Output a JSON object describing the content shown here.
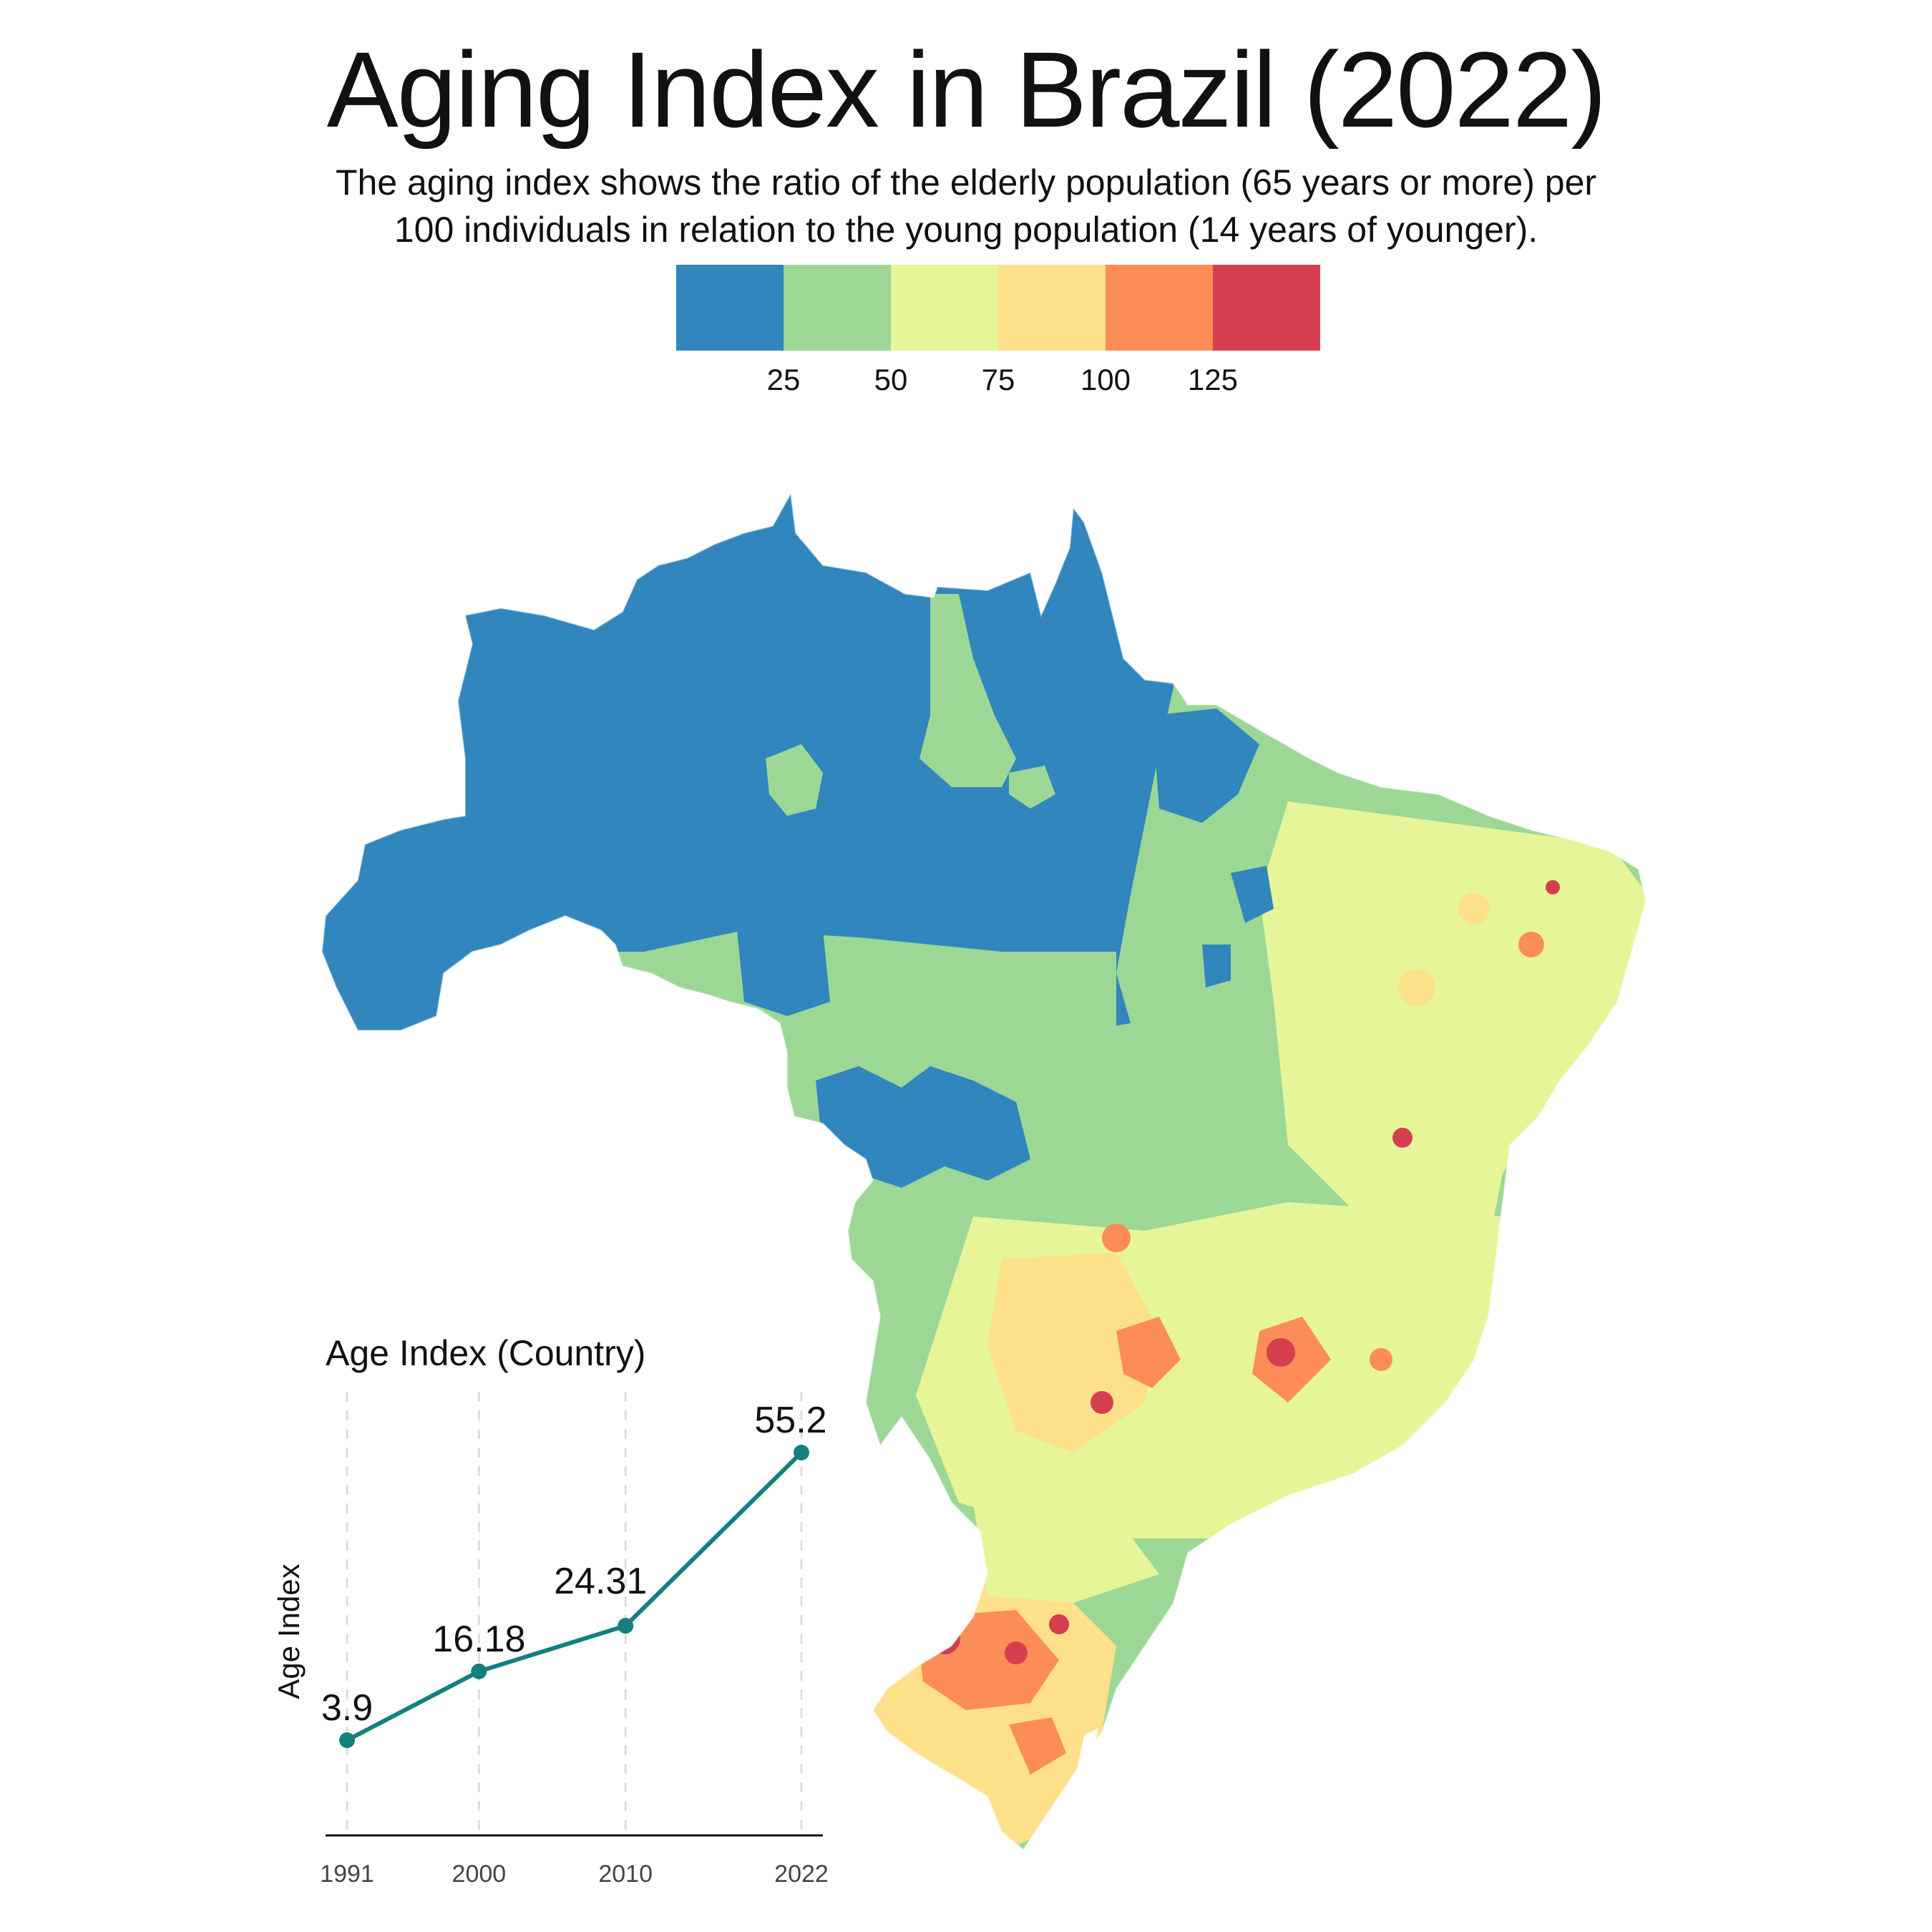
{
  "title": "Aging Index in Brazil (2022)",
  "subtitle": {
    "line1": "The aging index shows the ratio of the elderly population (65 years or more) per",
    "line2": "100 individuals in relation to the young population (14 years of younger)."
  },
  "legend": {
    "colors": [
      "#3186BE",
      "#9CD795",
      "#E6F598",
      "#FEE08B",
      "#FC8D59",
      "#D53E4F"
    ],
    "breaks": [
      "25",
      "50",
      "75",
      "100",
      "125"
    ]
  },
  "map": {
    "region": "Brazil",
    "colors": {
      "very_low": "#3186BE",
      "low": "#9CD795",
      "medium": "#E6F598",
      "high": "#FEE08B",
      "higher": "#FC8D59",
      "highest": "#D53E4F"
    }
  },
  "chart_data": {
    "type": "line",
    "title": "Age Index (Country)",
    "xlabel": "",
    "ylabel": "Age Index",
    "categories": [
      "1991",
      "2000",
      "2010",
      "2022"
    ],
    "series": [
      {
        "values": [
          3.9,
          16.18,
          24.31,
          55.2
        ],
        "labels": [
          "3.9",
          "16.18",
          "24.31",
          "55.2"
        ]
      }
    ],
    "line_color": "#13807F",
    "grid": "vertical dashed"
  }
}
